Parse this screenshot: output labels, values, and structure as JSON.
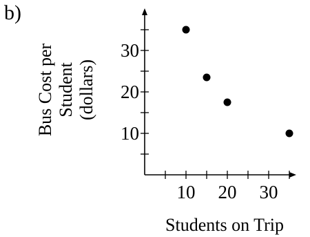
{
  "panel_label": "b)",
  "chart_data": {
    "type": "scatter",
    "title": "",
    "xlabel": "Students on Trip",
    "ylabel_lines": [
      "Bus Cost per",
      "Student",
      "(dollars)"
    ],
    "x_ticks": [
      10,
      20,
      30
    ],
    "y_ticks": [
      10,
      20,
      30
    ],
    "x_minor_step": 5,
    "y_minor_step": 5,
    "xlim": [
      0,
      38
    ],
    "ylim": [
      0,
      38
    ],
    "grid": false,
    "points": [
      {
        "x": 10,
        "y": 35
      },
      {
        "x": 15,
        "y": 23.5
      },
      {
        "x": 20,
        "y": 17.5
      },
      {
        "x": 35,
        "y": 10
      }
    ]
  }
}
